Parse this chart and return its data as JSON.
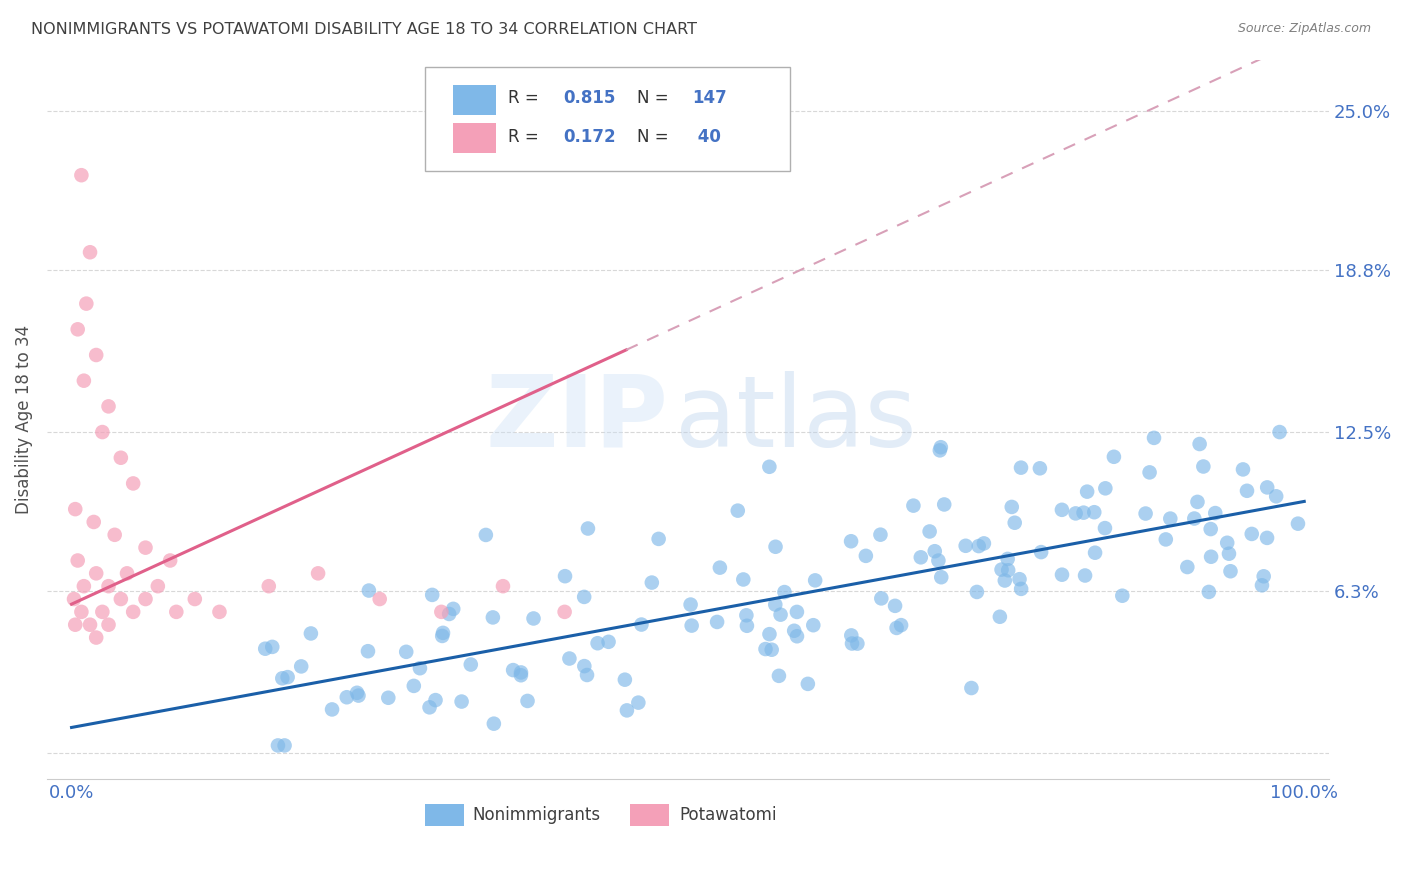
{
  "title": "NONIMMIGRANTS VS POTAWATOMI DISABILITY AGE 18 TO 34 CORRELATION CHART",
  "source": "Source: ZipAtlas.com",
  "ylabel": "Disability Age 18 to 34",
  "xlim": [
    -2,
    102
  ],
  "ylim": [
    -1,
    27
  ],
  "ytick_vals": [
    0.0,
    6.3,
    12.5,
    18.8,
    25.0
  ],
  "ytick_labels": [
    "",
    "6.3%",
    "12.5%",
    "18.8%",
    "25.0%"
  ],
  "xtick_vals": [
    0,
    20,
    40,
    60,
    80,
    100
  ],
  "xtick_labels": [
    "0.0%",
    "",
    "",
    "",
    "",
    "100.0%"
  ],
  "blue_color": "#7fb8e8",
  "pink_color": "#f4a0b8",
  "blue_line_color": "#1a5fa8",
  "pink_line_color": "#e0608a",
  "pink_dash_color": "#d8a0b8",
  "legend_label_blue": "Nonimmigrants",
  "legend_label_pink": "Potawatomi",
  "title_color": "#404040",
  "tick_color": "#4472c4",
  "source_color": "#808080",
  "grid_color": "#d8d8d8",
  "blue_R": 0.815,
  "blue_N": 147,
  "pink_R": 0.172,
  "pink_N": 40,
  "blue_slope": 0.088,
  "blue_intercept": 1.0,
  "pink_slope": 0.22,
  "pink_intercept": 5.8,
  "pink_solid_end": 45,
  "watermark_zip": "ZIP",
  "watermark_atlas": "atlas"
}
